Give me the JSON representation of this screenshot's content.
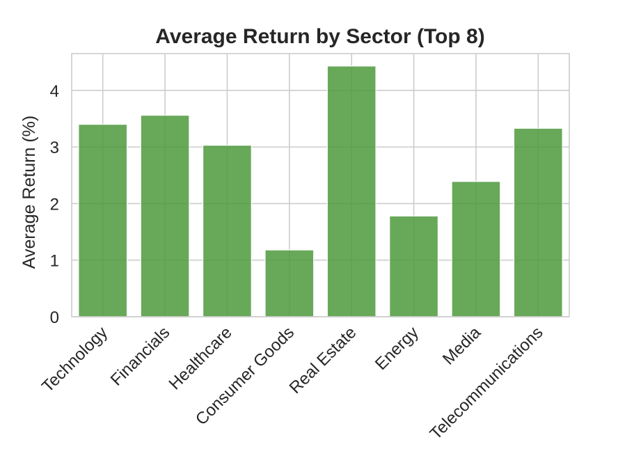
{
  "chart_data": {
    "type": "bar",
    "title": "Average Return by Sector (Top 8)",
    "xlabel": "",
    "ylabel": "Average Return (%)",
    "categories": [
      "Technology",
      "Financials",
      "Healthcare",
      "Consumer Goods",
      "Real Estate",
      "Energy",
      "Media",
      "Telecommunications"
    ],
    "values": [
      3.4,
      3.56,
      3.03,
      1.18,
      4.43,
      1.78,
      2.39,
      3.33
    ],
    "ylim": [
      0,
      4.65
    ],
    "yticks": [
      0,
      1,
      2,
      3,
      4
    ],
    "grid": true,
    "bar_color": "#4c9a3c",
    "bar_opacity": 0.85,
    "legend": "none"
  }
}
